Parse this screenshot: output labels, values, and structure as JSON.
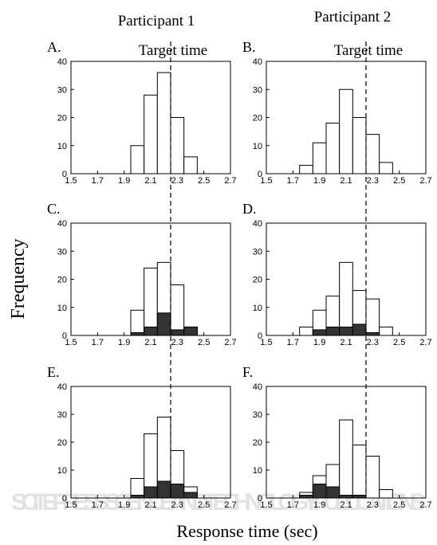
{
  "column_titles": [
    "Participant 1",
    "Participant 2"
  ],
  "target_label": "Target time",
  "ylabel": "Frequency",
  "xlabel": "Response time (sec)",
  "watermark_text": "SCITEPRESS SCIENCE AND TECHNOLOGY PUBLICATIONS",
  "colors": {
    "stroke": "#000000",
    "bar_fill": "#ffffff",
    "dark_fill": "#333333",
    "watermark": "#e3e3e3"
  },
  "axes": {
    "xlim": [
      1.5,
      2.7
    ],
    "ylim": [
      0,
      40
    ],
    "xticks": [
      "1.5",
      "1.7",
      "1.9",
      "2.1",
      "2.3",
      "2.5",
      "2.7"
    ],
    "yticks": [
      "0",
      "10",
      "20",
      "30",
      "40"
    ],
    "target_time": 2.25,
    "bin_width": 0.1
  },
  "chart_data": [
    {
      "type": "bar",
      "panel": "A.",
      "participant": "Participant 1",
      "bin_centers": [
        2.0,
        2.1,
        2.2,
        2.3,
        2.4
      ],
      "values": [
        10,
        28,
        36,
        20,
        6
      ],
      "dark_values": [],
      "target_label_shown": true
    },
    {
      "type": "bar",
      "panel": "B.",
      "participant": "Participant 2",
      "bin_centers": [
        1.8,
        1.9,
        2.0,
        2.1,
        2.2,
        2.3,
        2.4
      ],
      "values": [
        3,
        11,
        18,
        30,
        20,
        14,
        4
      ],
      "dark_values": [],
      "target_label_shown": true
    },
    {
      "type": "bar",
      "panel": "C.",
      "participant": "Participant 1",
      "bin_centers": [
        2.0,
        2.1,
        2.2,
        2.3,
        2.4
      ],
      "values": [
        9,
        24,
        26,
        18,
        3
      ],
      "dark_values": [
        1,
        3,
        8,
        2,
        3
      ],
      "target_label_shown": false
    },
    {
      "type": "bar",
      "panel": "D.",
      "participant": "Participant 2",
      "bin_centers": [
        1.8,
        1.9,
        2.0,
        2.1,
        2.2,
        2.3,
        2.4
      ],
      "values": [
        3,
        9,
        14,
        26,
        16,
        13,
        3
      ],
      "dark_values": [
        0,
        2,
        3,
        3,
        4,
        1,
        0
      ],
      "target_label_shown": false
    },
    {
      "type": "bar",
      "panel": "E.",
      "participant": "Participant 1",
      "bin_centers": [
        2.0,
        2.1,
        2.2,
        2.3,
        2.4
      ],
      "values": [
        7,
        23,
        29,
        17,
        4
      ],
      "dark_values": [
        1,
        4,
        6,
        5,
        2
      ],
      "target_label_shown": false
    },
    {
      "type": "bar",
      "panel": "F.",
      "participant": "Participant 2",
      "bin_centers": [
        1.8,
        1.9,
        2.0,
        2.1,
        2.2,
        2.3,
        2.4
      ],
      "values": [
        2,
        8,
        12,
        28,
        19,
        15,
        3
      ],
      "dark_values": [
        1,
        5,
        4,
        1,
        1,
        0,
        0
      ],
      "target_label_shown": false
    }
  ]
}
